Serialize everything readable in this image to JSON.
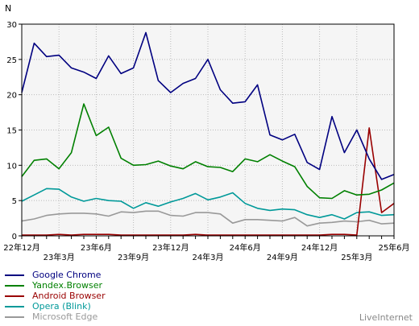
{
  "chart_data": {
    "type": "line",
    "ylabel": "N",
    "ylim": [
      0,
      30
    ],
    "yticks": [
      0,
      5,
      10,
      15,
      20,
      25,
      30
    ],
    "x_tick_labels": [
      {
        "label": "22年12月",
        "index": 0,
        "row": 1
      },
      {
        "label": "23年3月",
        "index": 3,
        "row": 2
      },
      {
        "label": "23年6月",
        "index": 6,
        "row": 1
      },
      {
        "label": "23年9月",
        "index": 9,
        "row": 2
      },
      {
        "label": "23年12月",
        "index": 12,
        "row": 1
      },
      {
        "label": "24年3月",
        "index": 15,
        "row": 2
      },
      {
        "label": "24年6月",
        "index": 18,
        "row": 1
      },
      {
        "label": "24年9月",
        "index": 21,
        "row": 2
      },
      {
        "label": "24年12月",
        "index": 24,
        "row": 1
      },
      {
        "label": "25年3月",
        "index": 27,
        "row": 2
      },
      {
        "label": "25年6月",
        "index": 30,
        "row": 1
      }
    ],
    "grid": true,
    "series": [
      {
        "name": "Google Chrome",
        "color": "#000080",
        "values": [
          20.3,
          27.3,
          25.4,
          25.6,
          23.8,
          23.2,
          22.3,
          25.5,
          23.0,
          23.8,
          28.8,
          22.0,
          20.3,
          21.6,
          22.3,
          25.0,
          20.7,
          18.8,
          19.0,
          21.4,
          14.3,
          13.6,
          14.4,
          10.4,
          9.4,
          16.9,
          11.8,
          15.0,
          10.9,
          8.0,
          8.7
        ]
      },
      {
        "name": "Yandex.Browser",
        "color": "#008000",
        "values": [
          8.4,
          10.7,
          10.9,
          9.5,
          11.8,
          18.7,
          14.2,
          15.4,
          11.0,
          10.0,
          10.1,
          10.6,
          9.9,
          9.5,
          10.5,
          9.8,
          9.7,
          9.1,
          10.9,
          10.5,
          11.5,
          10.6,
          9.8,
          7.0,
          5.4,
          5.3,
          6.4,
          5.8,
          5.9,
          6.5,
          7.5
        ]
      },
      {
        "name": "Android Browser",
        "color": "#990000",
        "values": [
          0.1,
          0.1,
          0.1,
          0.2,
          0.1,
          0.2,
          0.2,
          0.2,
          0.1,
          0.1,
          0.1,
          0.1,
          0.1,
          0.1,
          0.2,
          0.1,
          0.1,
          0.1,
          0.1,
          0.1,
          0.1,
          0.1,
          0.1,
          0.1,
          0.1,
          0.2,
          0.2,
          0.1,
          15.3,
          3.3,
          4.6
        ]
      },
      {
        "name": "Opera (Blink)",
        "color": "#009999",
        "values": [
          4.9,
          5.8,
          6.7,
          6.6,
          5.5,
          4.9,
          5.3,
          5.0,
          4.9,
          3.9,
          4.7,
          4.2,
          4.8,
          5.3,
          6.0,
          5.1,
          5.5,
          6.1,
          4.6,
          3.9,
          3.6,
          3.8,
          3.7,
          3.0,
          2.6,
          3.0,
          2.4,
          3.3,
          3.4,
          2.9,
          3.0
        ]
      },
      {
        "name": "Microsoft Edge",
        "color": "#999999",
        "values": [
          2.1,
          2.4,
          2.9,
          3.1,
          3.2,
          3.2,
          3.1,
          2.8,
          3.4,
          3.3,
          3.5,
          3.5,
          2.9,
          2.8,
          3.3,
          3.3,
          3.1,
          1.8,
          2.3,
          2.3,
          2.2,
          2.1,
          2.6,
          1.4,
          1.8,
          1.9,
          2.1,
          2.0,
          2.2,
          1.7,
          1.8
        ]
      }
    ]
  },
  "source_label": "LiveInternet"
}
